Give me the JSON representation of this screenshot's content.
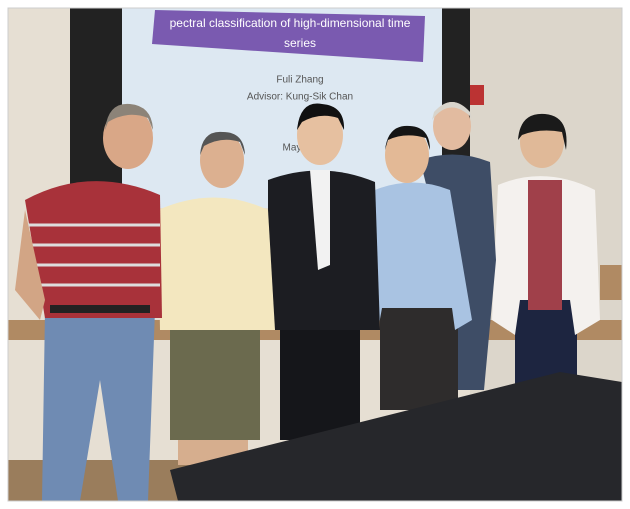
{
  "slide": {
    "title_lines": [
      "pectral classification of high-dimensional time",
      "series"
    ],
    "author": "Fuli Zhang",
    "advisor": "Advisor: Kung-Sik Chan",
    "date": "May"
  }
}
